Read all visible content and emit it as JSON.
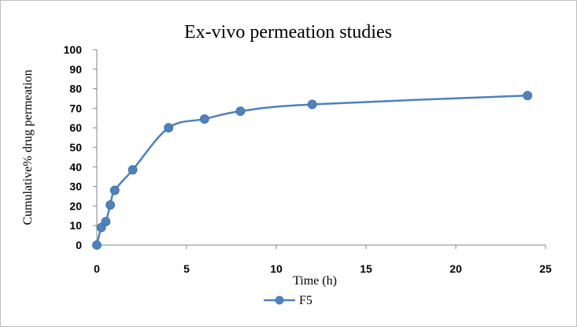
{
  "chart_data": {
    "type": "line",
    "title": "Ex-vivo permeation studies",
    "xlabel": "Time (h)",
    "ylabel": "Cumulative% drug permeation",
    "xlim": [
      0,
      25
    ],
    "ylim": [
      0,
      100
    ],
    "x_ticks": [
      "0",
      "5",
      "10",
      "15",
      "20",
      "25"
    ],
    "y_ticks": [
      "0",
      "10",
      "20",
      "30",
      "40",
      "50",
      "60",
      "70",
      "80",
      "90",
      "100"
    ],
    "grid": false,
    "legend_position": "bottom",
    "line_style": "smooth",
    "series": [
      {
        "name": "F5",
        "color": "#4f81bd",
        "points": [
          {
            "x": 0,
            "y": 0
          },
          {
            "x": 0.25,
            "y": 9
          },
          {
            "x": 0.5,
            "y": 12
          },
          {
            "x": 0.75,
            "y": 20.5
          },
          {
            "x": 1,
            "y": 28
          },
          {
            "x": 2,
            "y": 38.5
          },
          {
            "x": 4,
            "y": 60
          },
          {
            "x": 6,
            "y": 64.5
          },
          {
            "x": 8,
            "y": 68.5
          },
          {
            "x": 12,
            "y": 72
          },
          {
            "x": 24,
            "y": 76.5
          }
        ]
      }
    ]
  }
}
